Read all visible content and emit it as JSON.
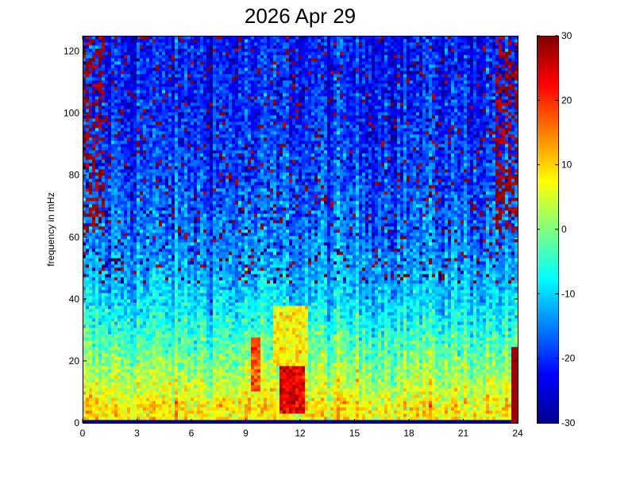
{
  "chart_data": {
    "type": "heatmap",
    "title": "2026 Apr 29",
    "xlabel": "",
    "ylabel": "frequency in mHz",
    "xlim": [
      0,
      24
    ],
    "ylim": [
      0,
      125
    ],
    "x_ticks": [
      "0",
      "3",
      "6",
      "9",
      "12",
      "15",
      "18",
      "21",
      "24"
    ],
    "y_ticks": [
      "0",
      "20",
      "40",
      "60",
      "80",
      "100",
      "120"
    ],
    "colorbar": {
      "colormap": "jet",
      "clim": [
        -30,
        30
      ],
      "ticks": [
        "30",
        "20",
        "10",
        "0",
        "-10",
        "-20",
        "-30"
      ]
    },
    "intensity_profile": {
      "frequency_mHz": [
        0,
        1.5,
        5,
        10,
        20,
        30,
        40,
        60,
        80,
        100,
        125
      ],
      "typical_value": [
        -28,
        8,
        9,
        5,
        0,
        -5,
        -10,
        -15,
        -18,
        -20,
        -21
      ]
    },
    "hotspots": [
      {
        "time_range": [
          10.8,
          12.2
        ],
        "frequency_range_mHz": [
          3,
          18
        ],
        "value": 24
      },
      {
        "time_range": [
          9.2,
          9.8
        ],
        "frequency_range_mHz": [
          10,
          28
        ],
        "value": 18
      },
      {
        "time_range": [
          10.5,
          12.5
        ],
        "frequency_range_mHz": [
          18,
          38
        ],
        "value": 8
      }
    ],
    "grid": false,
    "colors": {
      "background": "#ffffff",
      "axis": "#000000"
    }
  }
}
